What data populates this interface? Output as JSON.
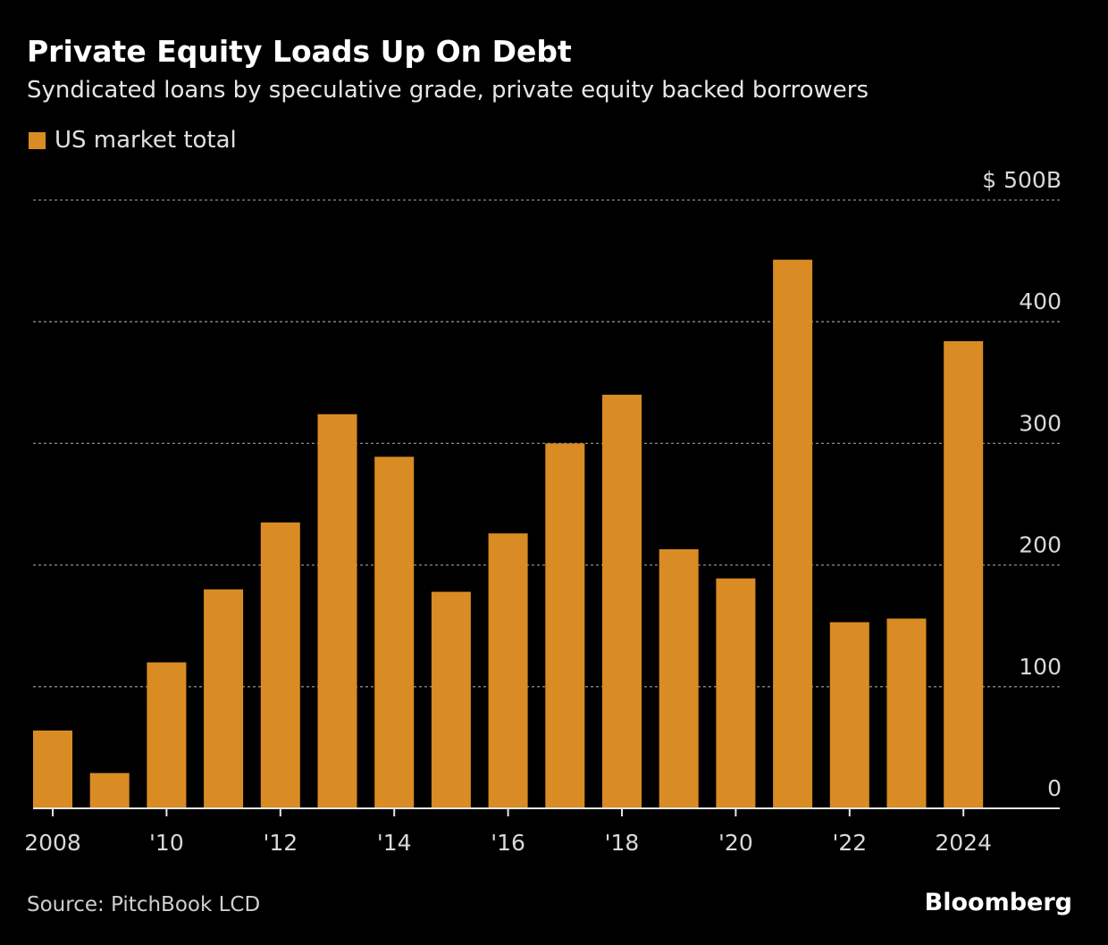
{
  "header": {
    "title": "Private Equity Loads Up On Debt",
    "subtitle": "Syndicated loans by speculative grade, private equity backed borrowers"
  },
  "legend": {
    "label": "US market total"
  },
  "footer": {
    "source": "Source: PitchBook LCD",
    "brand": "Bloomberg"
  },
  "colors": {
    "background": "#000000",
    "bar": "#d98b24",
    "grid": "#8a8a8a",
    "text": "#d9d9d9"
  },
  "chart_data": {
    "type": "bar",
    "title": "Private Equity Loads Up On Debt",
    "subtitle": "Syndicated loans by speculative grade, private equity backed borrowers",
    "categories": [
      "2008",
      "2009",
      "2010",
      "2011",
      "2012",
      "2013",
      "2014",
      "2015",
      "2016",
      "2017",
      "2018",
      "2019",
      "2020",
      "2021",
      "2022",
      "2023",
      "2024"
    ],
    "series": [
      {
        "name": "US market total",
        "values": [
          64,
          29,
          120,
          180,
          235,
          324,
          289,
          178,
          226,
          300,
          340,
          213,
          189,
          451,
          153,
          156,
          384
        ]
      }
    ],
    "x_tick_labels": [
      {
        "category": "2008",
        "label": "2008"
      },
      {
        "category": "2010",
        "label": "'10"
      },
      {
        "category": "2012",
        "label": "'12"
      },
      {
        "category": "2014",
        "label": "'14"
      },
      {
        "category": "2016",
        "label": "'16"
      },
      {
        "category": "2018",
        "label": "'18"
      },
      {
        "category": "2020",
        "label": "'20"
      },
      {
        "category": "2022",
        "label": "'22"
      },
      {
        "category": "2024",
        "label": "2024"
      }
    ],
    "y_ticks": [
      {
        "value": 0,
        "label": "0"
      },
      {
        "value": 100,
        "label": "100"
      },
      {
        "value": 200,
        "label": "200"
      },
      {
        "value": 300,
        "label": "300"
      },
      {
        "value": 400,
        "label": "400"
      },
      {
        "value": 500,
        "label": "$ 500B"
      }
    ],
    "ylim": [
      0,
      500
    ],
    "y_axis_side": "right",
    "grid": true,
    "legend_position": "top-left"
  }
}
